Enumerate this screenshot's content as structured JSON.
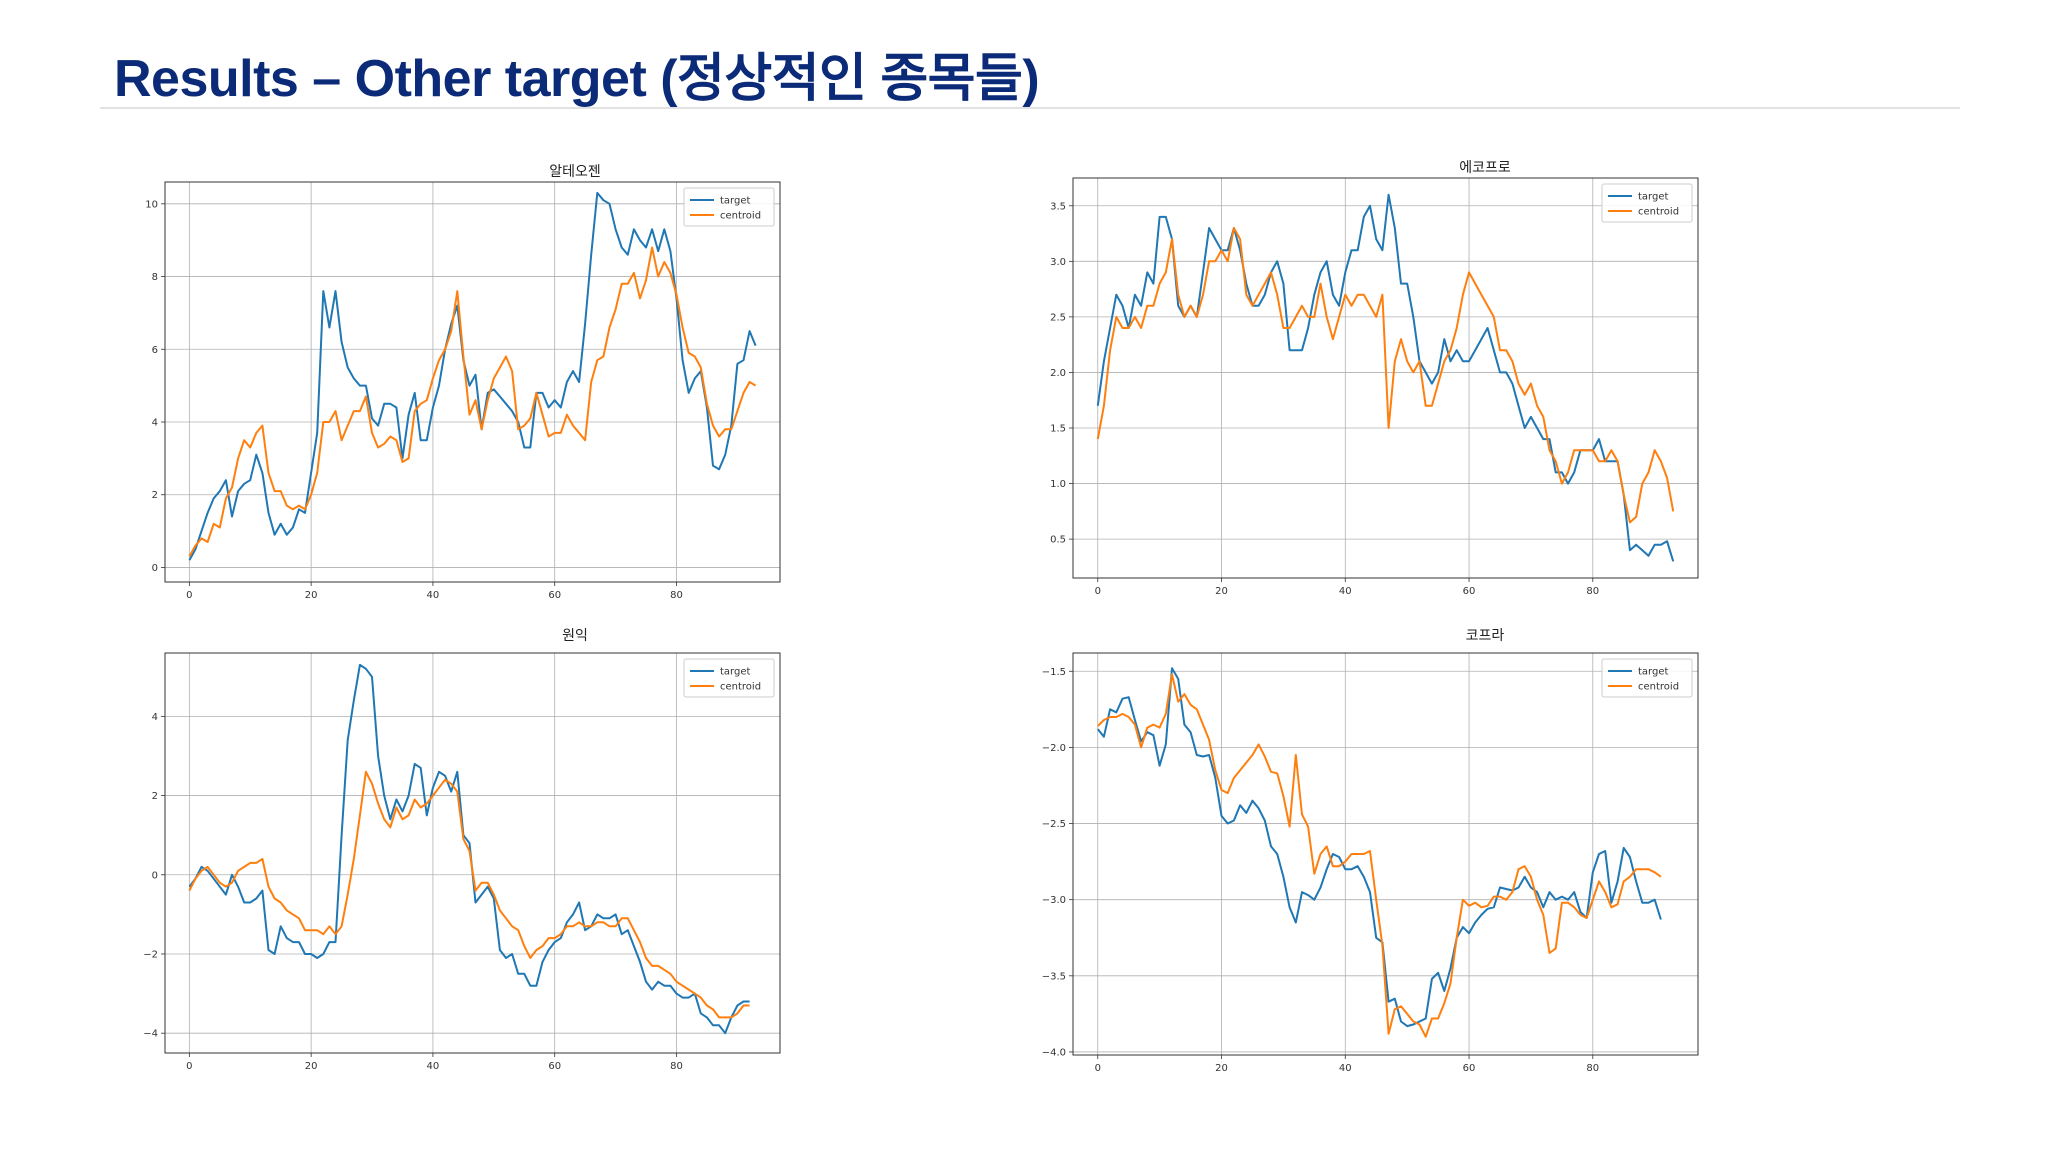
{
  "slide": {
    "title": "Results – Other target (정상적인 종목들)"
  },
  "theme": {
    "title_color": "#0b2a78",
    "target_color": "#1f77b4",
    "centroid_color": "#ff7f0e",
    "grid_color": "#b0b0b0"
  },
  "chart_data": [
    {
      "type": "line",
      "title": "알테오젠",
      "xlim": [
        -4,
        97
      ],
      "ylim": [
        -0.4,
        10.6
      ],
      "xticks": [
        0,
        20,
        40,
        60,
        80
      ],
      "yticks": [
        0,
        2,
        4,
        6,
        8,
        10
      ],
      "yticklabels": [
        "0",
        "2",
        "4",
        "6",
        "8",
        "10"
      ],
      "grid": true,
      "legend": "top-right",
      "series": [
        {
          "name": "target",
          "color": "#1f77b4",
          "values": [
            0.2,
            0.5,
            1.0,
            1.5,
            1.9,
            2.1,
            2.4,
            1.4,
            2.1,
            2.3,
            2.4,
            3.1,
            2.6,
            1.5,
            0.9,
            1.2,
            0.9,
            1.1,
            1.6,
            1.5,
            2.6,
            3.7,
            7.6,
            6.6,
            7.6,
            6.2,
            5.5,
            5.2,
            5.0,
            5.0,
            4.1,
            3.9,
            4.5,
            4.5,
            4.4,
            3.0,
            4.2,
            4.8,
            3.5,
            3.5,
            4.4,
            5.0,
            6.0,
            6.7,
            7.2,
            5.7,
            5.0,
            5.3,
            3.8,
            4.8,
            4.9,
            4.7,
            4.5,
            4.3,
            4.0,
            3.3,
            3.3,
            4.8,
            4.8,
            4.4,
            4.6,
            4.4,
            5.1,
            5.4,
            5.1,
            6.7,
            8.6,
            10.3,
            10.1,
            10.0,
            9.3,
            8.8,
            8.6,
            9.3,
            9.0,
            8.8,
            9.3,
            8.7,
            9.3,
            8.7,
            7.4,
            5.7,
            4.8,
            5.2,
            5.4,
            4.4,
            2.8,
            2.7,
            3.1,
            3.9,
            5.6,
            5.7,
            6.5,
            6.1
          ]
        },
        {
          "name": "centroid",
          "color": "#ff7f0e",
          "values": [
            0.3,
            0.6,
            0.8,
            0.7,
            1.2,
            1.1,
            1.9,
            2.2,
            3.0,
            3.5,
            3.3,
            3.7,
            3.9,
            2.6,
            2.1,
            2.1,
            1.7,
            1.6,
            1.7,
            1.6,
            2.0,
            2.6,
            4.0,
            4.0,
            4.3,
            3.5,
            3.9,
            4.3,
            4.3,
            4.7,
            3.7,
            3.3,
            3.4,
            3.6,
            3.5,
            2.9,
            3.0,
            4.3,
            4.5,
            4.6,
            5.2,
            5.7,
            6.0,
            6.5,
            7.6,
            5.8,
            4.2,
            4.6,
            3.8,
            4.6,
            5.2,
            5.5,
            5.8,
            5.4,
            3.8,
            3.9,
            4.1,
            4.8,
            4.2,
            3.6,
            3.7,
            3.7,
            4.2,
            3.9,
            3.7,
            3.5,
            5.1,
            5.7,
            5.8,
            6.6,
            7.1,
            7.8,
            7.8,
            8.1,
            7.4,
            7.9,
            8.8,
            8.0,
            8.4,
            8.1,
            7.5,
            6.6,
            5.9,
            5.8,
            5.5,
            4.5,
            3.9,
            3.6,
            3.8,
            3.8,
            4.3,
            4.8,
            5.1,
            5.0
          ]
        }
      ]
    },
    {
      "type": "line",
      "title": "에코프로",
      "xlim": [
        -4,
        97
      ],
      "ylim": [
        0.15,
        3.75
      ],
      "xticks": [
        0,
        20,
        40,
        60,
        80
      ],
      "yticks": [
        0.5,
        1.0,
        1.5,
        2.0,
        2.5,
        3.0,
        3.5
      ],
      "yticklabels": [
        "0.5",
        "1.0",
        "1.5",
        "2.0",
        "2.5",
        "3.0",
        "3.5"
      ],
      "grid": true,
      "legend": "top-right",
      "series": [
        {
          "name": "target",
          "color": "#1f77b4",
          "values": [
            1.7,
            2.1,
            2.4,
            2.7,
            2.6,
            2.4,
            2.7,
            2.6,
            2.9,
            2.8,
            3.4,
            3.4,
            3.2,
            2.6,
            2.5,
            2.6,
            2.5,
            2.9,
            3.3,
            3.2,
            3.1,
            3.1,
            3.3,
            3.1,
            2.8,
            2.6,
            2.6,
            2.7,
            2.9,
            3.0,
            2.8,
            2.2,
            2.2,
            2.2,
            2.4,
            2.7,
            2.9,
            3.0,
            2.7,
            2.6,
            2.9,
            3.1,
            3.1,
            3.4,
            3.5,
            3.2,
            3.1,
            3.6,
            3.3,
            2.8,
            2.8,
            2.5,
            2.1,
            2.0,
            1.9,
            2.0,
            2.3,
            2.1,
            2.2,
            2.1,
            2.1,
            2.2,
            2.3,
            2.4,
            2.2,
            2.0,
            2.0,
            1.9,
            1.7,
            1.5,
            1.6,
            1.5,
            1.4,
            1.4,
            1.1,
            1.1,
            1.0,
            1.1,
            1.3,
            1.3,
            1.3,
            1.4,
            1.2,
            1.2,
            1.2,
            0.9,
            0.4,
            0.45,
            0.4,
            0.35,
            0.45,
            0.45,
            0.48,
            0.3
          ]
        },
        {
          "name": "centroid",
          "color": "#ff7f0e",
          "values": [
            1.4,
            1.7,
            2.2,
            2.5,
            2.4,
            2.4,
            2.5,
            2.4,
            2.6,
            2.6,
            2.8,
            2.9,
            3.2,
            2.7,
            2.5,
            2.6,
            2.5,
            2.7,
            3.0,
            3.0,
            3.1,
            3.0,
            3.3,
            3.2,
            2.7,
            2.6,
            2.7,
            2.8,
            2.9,
            2.7,
            2.4,
            2.4,
            2.5,
            2.6,
            2.5,
            2.5,
            2.8,
            2.5,
            2.3,
            2.5,
            2.7,
            2.6,
            2.7,
            2.7,
            2.6,
            2.5,
            2.7,
            1.5,
            2.1,
            2.3,
            2.1,
            2.0,
            2.1,
            1.7,
            1.7,
            1.9,
            2.1,
            2.2,
            2.4,
            2.7,
            2.9,
            2.8,
            2.7,
            2.6,
            2.5,
            2.2,
            2.2,
            2.1,
            1.9,
            1.8,
            1.9,
            1.7,
            1.6,
            1.3,
            1.2,
            1.0,
            1.1,
            1.3,
            1.3,
            1.3,
            1.3,
            1.2,
            1.2,
            1.3,
            1.2,
            0.9,
            0.65,
            0.7,
            1.0,
            1.1,
            1.3,
            1.2,
            1.05,
            0.75
          ]
        }
      ]
    },
    {
      "type": "line",
      "title": "원익",
      "xlim": [
        -4,
        97
      ],
      "ylim": [
        -4.5,
        5.6
      ],
      "xticks": [
        0,
        20,
        40,
        60,
        80
      ],
      "yticks": [
        -4,
        -2,
        0,
        2,
        4
      ],
      "yticklabels": [
        "−4",
        "−2",
        "0",
        "2",
        "4"
      ],
      "grid": true,
      "legend": "top-right",
      "series": [
        {
          "name": "target",
          "color": "#1f77b4",
          "values": [
            -0.3,
            -0.1,
            0.2,
            0.1,
            -0.1,
            -0.3,
            -0.5,
            0.0,
            -0.3,
            -0.7,
            -0.7,
            -0.6,
            -0.4,
            -1.9,
            -2.0,
            -1.3,
            -1.6,
            -1.7,
            -1.7,
            -2.0,
            -2.0,
            -2.1,
            -2.0,
            -1.7,
            -1.7,
            1.0,
            3.4,
            4.4,
            5.3,
            5.2,
            5.0,
            3.0,
            2.0,
            1.4,
            1.9,
            1.6,
            2.0,
            2.8,
            2.7,
            1.5,
            2.2,
            2.6,
            2.5,
            2.1,
            2.6,
            1.0,
            0.8,
            -0.7,
            -0.5,
            -0.3,
            -0.6,
            -1.9,
            -2.1,
            -2.0,
            -2.5,
            -2.5,
            -2.8,
            -2.8,
            -2.2,
            -1.9,
            -1.7,
            -1.6,
            -1.2,
            -1.0,
            -0.7,
            -1.4,
            -1.3,
            -1.0,
            -1.1,
            -1.1,
            -1.0,
            -1.5,
            -1.4,
            -1.8,
            -2.2,
            -2.7,
            -2.9,
            -2.7,
            -2.8,
            -2.8,
            -3.0,
            -3.1,
            -3.1,
            -3.0,
            -3.5,
            -3.6,
            -3.8,
            -3.8,
            -4.0,
            -3.6,
            -3.3,
            -3.2,
            -3.2
          ]
        },
        {
          "name": "centroid",
          "color": "#ff7f0e",
          "values": [
            -0.4,
            -0.1,
            0.1,
            0.2,
            0.0,
            -0.2,
            -0.3,
            -0.2,
            0.1,
            0.2,
            0.3,
            0.3,
            0.4,
            -0.3,
            -0.6,
            -0.7,
            -0.9,
            -1.0,
            -1.1,
            -1.4,
            -1.4,
            -1.4,
            -1.5,
            -1.3,
            -1.5,
            -1.3,
            -0.5,
            0.4,
            1.5,
            2.6,
            2.3,
            1.8,
            1.4,
            1.2,
            1.7,
            1.4,
            1.5,
            1.9,
            1.7,
            1.8,
            2.0,
            2.2,
            2.4,
            2.3,
            2.1,
            0.9,
            0.6,
            -0.4,
            -0.2,
            -0.2,
            -0.5,
            -0.9,
            -1.1,
            -1.3,
            -1.4,
            -1.8,
            -2.1,
            -1.9,
            -1.8,
            -1.6,
            -1.6,
            -1.5,
            -1.3,
            -1.3,
            -1.2,
            -1.3,
            -1.3,
            -1.2,
            -1.2,
            -1.3,
            -1.3,
            -1.1,
            -1.1,
            -1.4,
            -1.7,
            -2.1,
            -2.3,
            -2.3,
            -2.4,
            -2.5,
            -2.7,
            -2.8,
            -2.9,
            -3.0,
            -3.1,
            -3.3,
            -3.4,
            -3.6,
            -3.6,
            -3.6,
            -3.5,
            -3.3,
            -3.3
          ]
        }
      ]
    },
    {
      "type": "line",
      "title": "코프라",
      "xlim": [
        -4,
        97
      ],
      "ylim": [
        -4.02,
        -1.38
      ],
      "xticks": [
        0,
        20,
        40,
        60,
        80
      ],
      "yticks": [
        -4.0,
        -3.5,
        -3.0,
        -2.5,
        -2.0,
        -1.5
      ],
      "yticklabels": [
        "−4.0",
        "−3.5",
        "−3.0",
        "−2.5",
        "−2.0",
        "−1.5"
      ],
      "grid": true,
      "legend": "top-right",
      "series": [
        {
          "name": "target",
          "color": "#1f77b4",
          "values": [
            -1.88,
            -1.93,
            -1.75,
            -1.77,
            -1.68,
            -1.67,
            -1.82,
            -1.96,
            -1.9,
            -1.92,
            -2.12,
            -1.98,
            -1.48,
            -1.55,
            -1.85,
            -1.9,
            -2.05,
            -2.06,
            -2.05,
            -2.2,
            -2.45,
            -2.5,
            -2.48,
            -2.38,
            -2.43,
            -2.35,
            -2.4,
            -2.48,
            -2.65,
            -2.7,
            -2.85,
            -3.05,
            -3.15,
            -2.95,
            -2.97,
            -3.0,
            -2.92,
            -2.8,
            -2.7,
            -2.72,
            -2.8,
            -2.8,
            -2.78,
            -2.85,
            -2.95,
            -3.25,
            -3.28,
            -3.67,
            -3.65,
            -3.8,
            -3.83,
            -3.82,
            -3.8,
            -3.78,
            -3.52,
            -3.48,
            -3.6,
            -3.45,
            -3.25,
            -3.18,
            -3.22,
            -3.15,
            -3.1,
            -3.06,
            -3.05,
            -2.92,
            -2.93,
            -2.94,
            -2.92,
            -2.85,
            -2.92,
            -2.95,
            -3.05,
            -2.95,
            -3.0,
            -2.98,
            -3.0,
            -2.95,
            -3.08,
            -3.12,
            -2.82,
            -2.7,
            -2.68,
            -3.02,
            -2.88,
            -2.66,
            -2.72,
            -2.88,
            -3.02,
            -3.02,
            -3.0,
            -3.13
          ]
        },
        {
          "name": "centroid",
          "color": "#ff7f0e",
          "values": [
            -1.86,
            -1.82,
            -1.8,
            -1.8,
            -1.78,
            -1.8,
            -1.85,
            -2.0,
            -1.87,
            -1.85,
            -1.87,
            -1.78,
            -1.52,
            -1.7,
            -1.65,
            -1.72,
            -1.75,
            -1.85,
            -1.95,
            -2.15,
            -2.28,
            -2.3,
            -2.2,
            -2.15,
            -2.1,
            -2.05,
            -1.98,
            -2.06,
            -2.16,
            -2.17,
            -2.32,
            -2.52,
            -2.05,
            -2.44,
            -2.52,
            -2.83,
            -2.7,
            -2.65,
            -2.78,
            -2.78,
            -2.75,
            -2.7,
            -2.7,
            -2.7,
            -2.68,
            -3.0,
            -3.3,
            -3.88,
            -3.72,
            -3.7,
            -3.75,
            -3.8,
            -3.82,
            -3.9,
            -3.78,
            -3.78,
            -3.68,
            -3.55,
            -3.25,
            -3.0,
            -3.04,
            -3.02,
            -3.05,
            -3.04,
            -2.98,
            -2.98,
            -3.0,
            -2.95,
            -2.8,
            -2.78,
            -2.85,
            -3.0,
            -3.1,
            -3.35,
            -3.32,
            -3.02,
            -3.02,
            -3.05,
            -3.1,
            -3.12,
            -3.0,
            -2.88,
            -2.95,
            -3.05,
            -3.03,
            -2.88,
            -2.85,
            -2.8,
            -2.8,
            -2.8,
            -2.82,
            -2.85
          ]
        }
      ]
    }
  ]
}
